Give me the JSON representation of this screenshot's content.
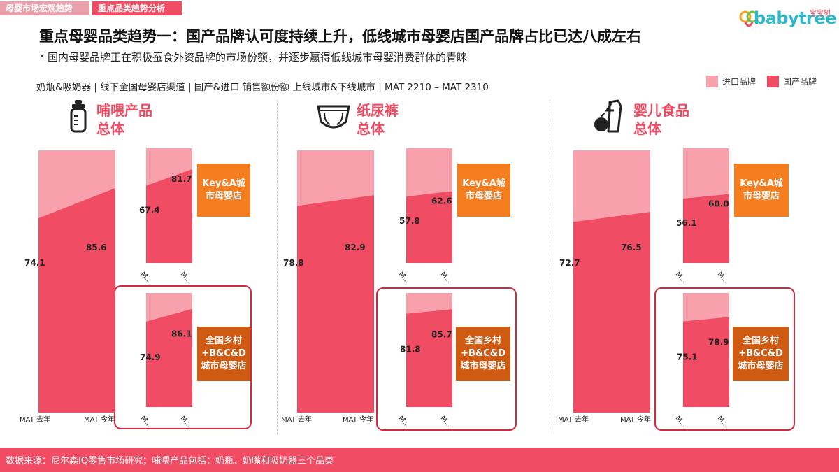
{
  "tabs": [
    "母婴市场宏观趋势",
    "重点品类趋势分析"
  ],
  "logo": {
    "text": "babytree",
    "cn": "宝宝树"
  },
  "title": "重点母婴品类趋势一：国产品牌认可度持续上升，低线城市母婴店国产品牌占比已达八成左右",
  "subtitle": "国内母婴品牌正在积极蚕食外资品牌的市场份额，并逐步赢得低线城市母婴消费群体的青睐",
  "scope": "奶瓶&吸奶器 | 线下全国母婴店渠道 | 国产&进口 销售额份额 上线城市&下线城市 | MAT 2210 – MAT 2310",
  "legend": [
    {
      "label": "进口品牌",
      "color": "#f8a1ad"
    },
    {
      "label": "国产品牌",
      "color": "#f04d64"
    }
  ],
  "colors": {
    "imported": "#f8a1ad",
    "domestic": "#f04d64",
    "tag_light": "#f47d20",
    "tag_dark": "#cf5a12"
  },
  "footer": "数据来源：尼尔森IQ零售市场研究；哺喂产品包括：奶瓶、奶嘴和吸奶器三个品类",
  "panels": [
    {
      "title_line1": "哺喂产品",
      "title_line2": "总体",
      "icon": "bottle-icon"
    },
    {
      "title_line1": "纸尿裤",
      "title_line2": "总体",
      "icon": "diaper-icon"
    },
    {
      "title_line1": "婴儿食品",
      "title_line2": "总体",
      "icon": "baby-food-icon"
    }
  ],
  "segment_tags": {
    "top": "Key&A城市母婴店",
    "bottom": "全国乡村+B&C&D城市母婴店"
  },
  "chart_data": [
    {
      "type": "area",
      "panel": "哺喂产品 总体",
      "stack": "100%",
      "categories": [
        "MAT 去年",
        "MAT 今年"
      ],
      "series": [
        {
          "name": "国产品牌",
          "segment": "总体",
          "values": [
            74.1,
            85.6
          ]
        },
        {
          "name": "国产品牌",
          "segment": "Key&A城市母婴店",
          "values": [
            67.4,
            81.7
          ]
        },
        {
          "name": "国产品牌",
          "segment": "全国乡村+B&C&D城市母婴店",
          "values": [
            74.9,
            86.1
          ]
        }
      ],
      "small_tick_labels": [
        "M...",
        "M..."
      ],
      "ylim": [
        0,
        100
      ]
    },
    {
      "type": "area",
      "panel": "纸尿裤 总体",
      "stack": "100%",
      "categories": [
        "MAT 去年",
        "MAT 今年"
      ],
      "series": [
        {
          "name": "国产品牌",
          "segment": "总体",
          "values": [
            78.8,
            82.9
          ]
        },
        {
          "name": "国产品牌",
          "segment": "Key&A城市母婴店",
          "values": [
            57.8,
            62.6
          ]
        },
        {
          "name": "国产品牌",
          "segment": "全国乡村+B&C&D城市母婴店",
          "values": [
            81.8,
            85.7
          ]
        }
      ],
      "small_tick_labels": [
        "M...",
        "M..."
      ],
      "ylim": [
        0,
        100
      ]
    },
    {
      "type": "area",
      "panel": "婴儿食品 总体",
      "stack": "100%",
      "categories": [
        "MAT 去年",
        "MAT 今年"
      ],
      "series": [
        {
          "name": "国产品牌",
          "segment": "总体",
          "values": [
            72.7,
            76.5
          ]
        },
        {
          "name": "国产品牌",
          "segment": "Key&A城市母婴店",
          "values": [
            56.1,
            60.0
          ]
        },
        {
          "name": "国产品牌",
          "segment": "全国乡村+B&C&D城市母婴店",
          "values": [
            75.1,
            78.9
          ]
        }
      ],
      "small_tick_labels": [
        "M...",
        "M..."
      ],
      "ylim": [
        0,
        100
      ]
    }
  ]
}
